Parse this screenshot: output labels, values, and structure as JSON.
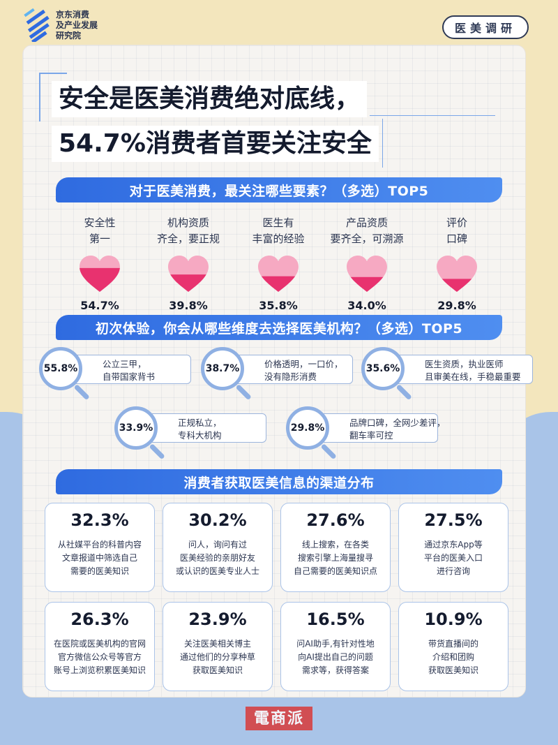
{
  "header": {
    "org_line1": "京东消费",
    "org_line2": "及产业发展",
    "org_line3": "研究院",
    "badge": "医美调研"
  },
  "title": {
    "line1": "安全是医美消费绝对底线，",
    "line2": "54.7%消费者首要关注安全"
  },
  "sections": {
    "s1": "对于医美消费，最关注哪些要素？（多选）TOP5",
    "s2": "初次体验，你会从哪些维度去选择医美机构？（多选）TOP5",
    "s3": "消费者获取医美信息的渠道分布"
  },
  "colors": {
    "accent": "#2f6be0",
    "heart_top": "#f6a9c2",
    "heart_fill": "#e8326f",
    "lens": "#8fb0e3"
  },
  "chart_data": [
    {
      "type": "bar",
      "title": "对于医美消费，最关注哪些要素？（多选）TOP5",
      "categories": [
        "安全性第一",
        "机构资质齐全，要正规",
        "医生有丰富的经验",
        "产品资质要齐全，可溯源",
        "评价口碑"
      ],
      "label_lines": [
        [
          "安全性",
          "第一"
        ],
        [
          "机构资质",
          "齐全，要正规"
        ],
        [
          "医生有",
          "丰富的经验"
        ],
        [
          "产品资质",
          "要齐全，可溯源"
        ],
        [
          "评价",
          "口碑"
        ]
      ],
      "values": [
        54.7,
        39.8,
        35.8,
        34.0,
        29.8
      ],
      "labels": [
        "54.7%",
        "39.8%",
        "35.8%",
        "34.0%",
        "29.8%"
      ],
      "ylim": [
        0,
        100
      ]
    },
    {
      "type": "bar",
      "title": "初次体验，你会从哪些维度去选择医美机构？（多选）TOP5",
      "items": [
        {
          "pct": "55.8%",
          "value": 55.8,
          "line1": "公立三甲，",
          "line2": "自带国家背书"
        },
        {
          "pct": "38.7%",
          "value": 38.7,
          "line1": "价格透明，一口价，",
          "line2": "没有隐形消费"
        },
        {
          "pct": "35.6%",
          "value": 35.6,
          "line1": "医生资质，执业医师",
          "line2": "且审美在线，手稳最重要"
        },
        {
          "pct": "33.9%",
          "value": 33.9,
          "line1": "正规私立，",
          "line2": "专科大机构"
        },
        {
          "pct": "29.8%",
          "value": 29.8,
          "line1": "品牌口碑，全网少差评，",
          "line2": "翻车率可控"
        }
      ]
    },
    {
      "type": "table",
      "title": "消费者获取医美信息的渠道分布",
      "items": [
        {
          "pct": "32.3%",
          "value": 32.3,
          "desc": "从社媒平台的科普内容\n文章报道中筛选自己\n需要的医美知识"
        },
        {
          "pct": "30.2%",
          "value": 30.2,
          "desc": "问人，询问有过\n医美经验的亲朋好友\n或认识的医美专业人士"
        },
        {
          "pct": "27.6%",
          "value": 27.6,
          "desc": "线上搜索，在各类\n搜索引擎上海量搜寻\n自己需要的医美知识点"
        },
        {
          "pct": "27.5%",
          "value": 27.5,
          "desc": "通过京东App等\n平台的医美入口\n进行咨询"
        },
        {
          "pct": "26.3%",
          "value": 26.3,
          "desc": "在医院或医美机构的官网\n官方微信公众号等官方\n账号上浏览积累医美知识"
        },
        {
          "pct": "23.9%",
          "value": 23.9,
          "desc": "关注医美相关博主\n通过他们的分享种草\n获取医美知识"
        },
        {
          "pct": "16.5%",
          "value": 16.5,
          "desc": "问AI助手,有针对性地\n向AI提出自己的问题\n需求等，获得答案"
        },
        {
          "pct": "10.9%",
          "value": 10.9,
          "desc": "带货直播间的\n介绍和团购\n获取医美知识"
        }
      ]
    }
  ],
  "watermark": "電商派"
}
